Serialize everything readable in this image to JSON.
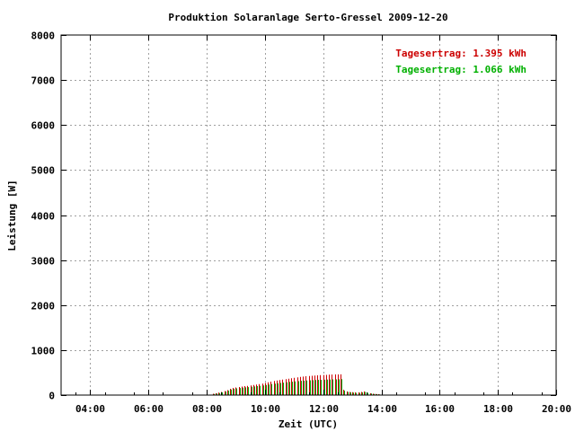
{
  "chart_data": {
    "type": "bar",
    "title": "Produktion Solaranlage Serto-Gressel 2009-12-20",
    "xlabel": "Zeit (UTC)",
    "ylabel": "Leistung [W]",
    "xlim_hours": [
      3,
      20
    ],
    "ylim": [
      0,
      8000
    ],
    "x_ticks": [
      {
        "hour": 4,
        "label": "04:00"
      },
      {
        "hour": 6,
        "label": "06:00"
      },
      {
        "hour": 8,
        "label": "08:00"
      },
      {
        "hour": 10,
        "label": "10:00"
      },
      {
        "hour": 12,
        "label": "12:00"
      },
      {
        "hour": 14,
        "label": "14:00"
      },
      {
        "hour": 16,
        "label": "16:00"
      },
      {
        "hour": 18,
        "label": "18:00"
      },
      {
        "hour": 20,
        "label": "20:00"
      }
    ],
    "y_ticks": [
      0,
      1000,
      2000,
      3000,
      4000,
      5000,
      6000,
      7000,
      8000
    ],
    "grid": true,
    "legend_position": "top-right",
    "series": [
      {
        "legend": "Tagesertrag: 1.395 kWh",
        "color": "#cc0000",
        "points": [
          [
            8.2,
            30
          ],
          [
            8.3,
            40
          ],
          [
            8.4,
            55
          ],
          [
            8.5,
            70
          ],
          [
            8.6,
            90
          ],
          [
            8.7,
            110
          ],
          [
            8.8,
            140
          ],
          [
            8.9,
            160
          ],
          [
            9.0,
            170
          ],
          [
            9.1,
            180
          ],
          [
            9.2,
            190
          ],
          [
            9.3,
            200
          ],
          [
            9.4,
            205
          ],
          [
            9.5,
            215
          ],
          [
            9.6,
            225
          ],
          [
            9.7,
            235
          ],
          [
            9.8,
            245
          ],
          [
            9.9,
            255
          ],
          [
            10.0,
            270
          ],
          [
            10.1,
            285
          ],
          [
            10.2,
            300
          ],
          [
            10.3,
            315
          ],
          [
            10.4,
            325
          ],
          [
            10.5,
            335
          ],
          [
            10.6,
            345
          ],
          [
            10.7,
            355
          ],
          [
            10.8,
            365
          ],
          [
            10.9,
            375
          ],
          [
            11.0,
            385
          ],
          [
            11.1,
            395
          ],
          [
            11.2,
            405
          ],
          [
            11.3,
            412
          ],
          [
            11.4,
            418
          ],
          [
            11.5,
            425
          ],
          [
            11.6,
            430
          ],
          [
            11.7,
            435
          ],
          [
            11.8,
            440
          ],
          [
            11.9,
            443
          ],
          [
            12.0,
            446
          ],
          [
            12.1,
            450
          ],
          [
            12.2,
            453
          ],
          [
            12.3,
            456
          ],
          [
            12.4,
            458
          ],
          [
            12.5,
            460
          ],
          [
            12.6,
            462
          ],
          [
            12.7,
            120
          ],
          [
            12.8,
            80
          ],
          [
            12.9,
            70
          ],
          [
            13.0,
            65
          ],
          [
            13.1,
            60
          ],
          [
            13.2,
            60
          ],
          [
            13.3,
            70
          ],
          [
            13.4,
            80
          ],
          [
            13.5,
            60
          ],
          [
            13.6,
            40
          ],
          [
            13.7,
            30
          ],
          [
            13.8,
            25
          ],
          [
            13.9,
            20
          ],
          [
            14.0,
            15
          ],
          [
            14.1,
            10
          ]
        ]
      },
      {
        "legend": "Tagesertrag: 1.066 kWh",
        "color": "#00b000",
        "points": [
          [
            8.2,
            25
          ],
          [
            8.3,
            35
          ],
          [
            8.4,
            45
          ],
          [
            8.5,
            60
          ],
          [
            8.6,
            80
          ],
          [
            8.7,
            100
          ],
          [
            8.8,
            125
          ],
          [
            8.9,
            140
          ],
          [
            9.0,
            150
          ],
          [
            9.1,
            158
          ],
          [
            9.2,
            165
          ],
          [
            9.3,
            172
          ],
          [
            9.4,
            178
          ],
          [
            9.5,
            185
          ],
          [
            9.6,
            192
          ],
          [
            9.7,
            200
          ],
          [
            9.8,
            208
          ],
          [
            9.9,
            215
          ],
          [
            10.0,
            225
          ],
          [
            10.1,
            235
          ],
          [
            10.2,
            245
          ],
          [
            10.3,
            255
          ],
          [
            10.4,
            262
          ],
          [
            10.5,
            270
          ],
          [
            10.6,
            278
          ],
          [
            10.7,
            285
          ],
          [
            10.8,
            292
          ],
          [
            10.9,
            298
          ],
          [
            11.0,
            305
          ],
          [
            11.1,
            310
          ],
          [
            11.2,
            316
          ],
          [
            11.3,
            320
          ],
          [
            11.4,
            324
          ],
          [
            11.5,
            328
          ],
          [
            11.6,
            332
          ],
          [
            11.7,
            335
          ],
          [
            11.8,
            338
          ],
          [
            11.9,
            340
          ],
          [
            12.0,
            342
          ],
          [
            12.1,
            344
          ],
          [
            12.2,
            346
          ],
          [
            12.3,
            348
          ],
          [
            12.4,
            350
          ],
          [
            12.5,
            352
          ],
          [
            12.6,
            354
          ],
          [
            12.7,
            100
          ],
          [
            12.8,
            70
          ],
          [
            12.9,
            60
          ],
          [
            13.0,
            55
          ],
          [
            13.1,
            50
          ],
          [
            13.2,
            50
          ],
          [
            13.3,
            60
          ],
          [
            13.4,
            70
          ],
          [
            13.5,
            50
          ],
          [
            13.6,
            35
          ],
          [
            13.7,
            25
          ],
          [
            13.8,
            20
          ],
          [
            13.9,
            15
          ],
          [
            14.0,
            10
          ],
          [
            14.1,
            8
          ]
        ]
      }
    ]
  }
}
